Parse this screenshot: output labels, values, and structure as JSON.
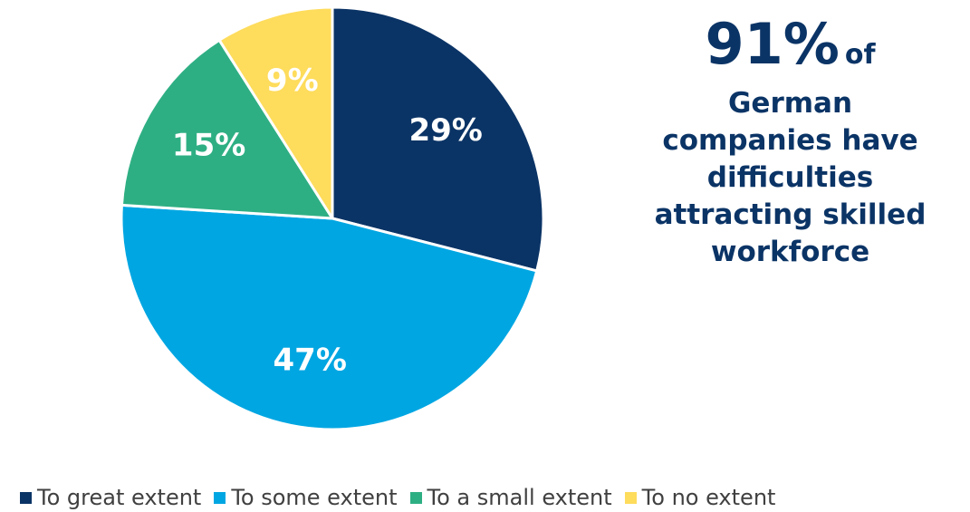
{
  "chart_data": {
    "type": "pie",
    "categories": [
      "To great extent",
      "To some extent",
      "To a small extent",
      "To no extent"
    ],
    "values": [
      29,
      47,
      15,
      9
    ],
    "value_labels": [
      "29%",
      "47%",
      "15%",
      "9%"
    ],
    "colors": [
      "#0b3466",
      "#00a6e2",
      "#2eaf83",
      "#fedc5c"
    ],
    "label_colors": [
      "#ffffff",
      "#ffffff",
      "#ffffff",
      "#ffffff"
    ],
    "legend_position": "bottom-left",
    "start_angle": "12 o'clock",
    "direction": "clockwise"
  },
  "callout": {
    "big_number": "91%",
    "of_text": "of",
    "description": "German companies have difficulties attracting skilled workforce"
  }
}
